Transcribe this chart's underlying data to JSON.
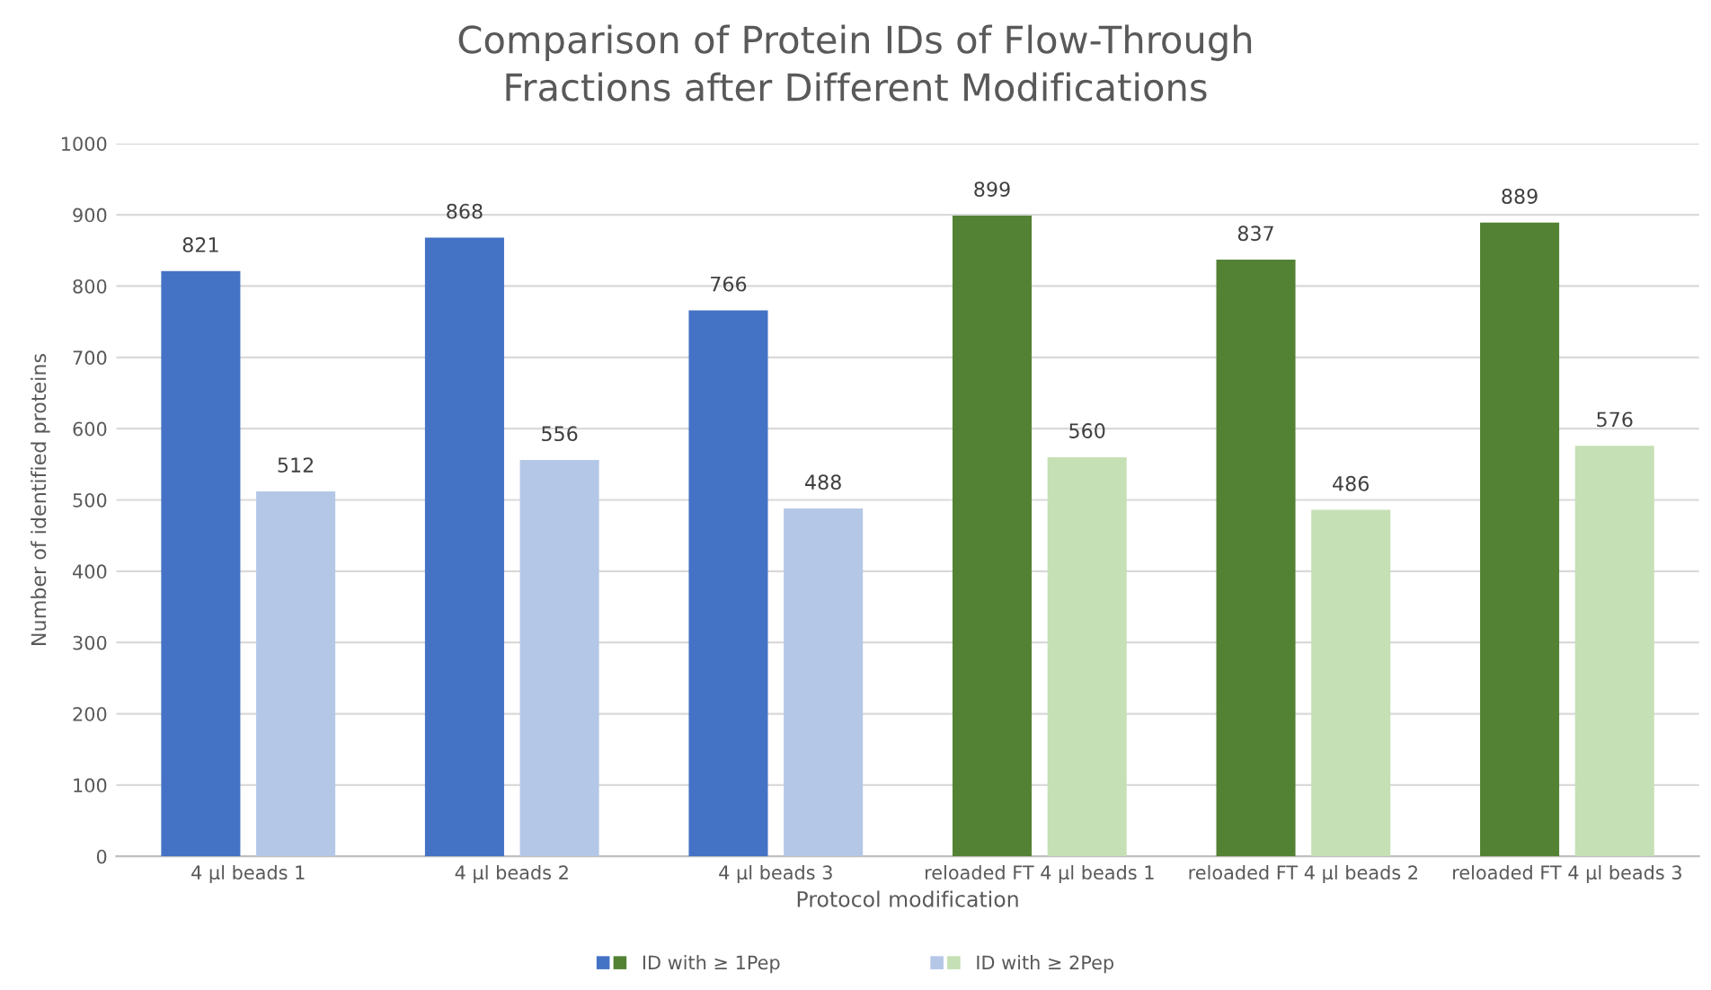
{
  "chart_data": {
    "type": "bar",
    "title": "Comparison of Protein IDs of Flow-Through\nFractions after Different Modifications",
    "xlabel": "Protocol modification",
    "ylabel": "Number of identified proteins",
    "categories": [
      "4 µl beads 1",
      "4 µl beads 2",
      "4 µl beads 3",
      "reloaded FT 4 µl beads 1",
      "reloaded FT 4 µl beads 2",
      "reloaded FT 4 µl beads 3"
    ],
    "series": [
      {
        "name": "ID with ≥ 1Pep",
        "colors": [
          "#4472c4",
          "#4472c4",
          "#4472c4",
          "#548235",
          "#548235",
          "#548235"
        ],
        "values": [
          821,
          868,
          766,
          899,
          837,
          889
        ]
      },
      {
        "name": "ID with ≥ 2Pep",
        "colors": [
          "#b4c7e7",
          "#b4c7e7",
          "#b4c7e7",
          "#c5e0b4",
          "#c5e0b4",
          "#c5e0b4"
        ],
        "values": [
          512,
          556,
          488,
          560,
          486,
          576
        ]
      }
    ],
    "ylim": [
      0,
      1000
    ],
    "yticks": [
      0,
      100,
      200,
      300,
      400,
      500,
      600,
      700,
      800,
      900,
      1000
    ],
    "grid": "y",
    "data_labels": true,
    "legend": "bottom"
  }
}
